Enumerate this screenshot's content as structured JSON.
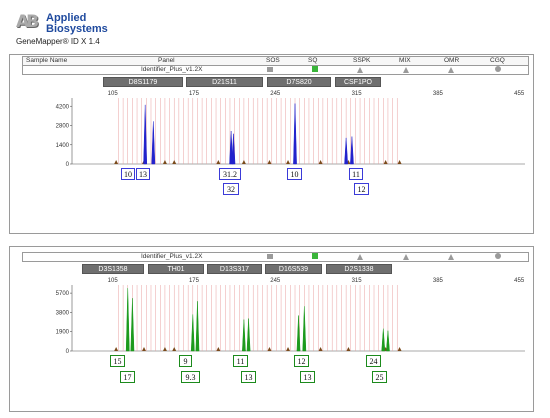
{
  "app": {
    "logo_mark": "AB",
    "brand_line1": "Applied",
    "brand_line2": "Biosystems",
    "product": "GeneMapper® ID X 1.4"
  },
  "columns": [
    "Sample Name",
    "Panel",
    "SOS",
    "SQ",
    "SSPK",
    "MIX",
    "OMR",
    "CGQ"
  ],
  "colors": {
    "blue_dye": "#2222cc",
    "green_dye": "#1c9a1c",
    "ladder_line": "#e8a0a0",
    "sq_pass": "#3ab53a",
    "flag_gray": "#9a9a9a"
  },
  "panels": [
    {
      "panel_name": "Identifier_Plus_v1.2X",
      "loci": [
        "D8S1179",
        "D21S11",
        "D7S820",
        "CSF1PO"
      ],
      "x_ticks": [
        "105",
        "175",
        "245",
        "315",
        "385",
        "455"
      ],
      "y_ticks": [
        "4200",
        "2800",
        "1400",
        "0"
      ],
      "dye": "blue",
      "peaks": [
        {
          "size": 133,
          "height": 4300
        },
        {
          "size": 140,
          "height": 3100
        },
        {
          "size": 207,
          "height": 2400
        },
        {
          "size": 209,
          "height": 2200
        },
        {
          "size": 262,
          "height": 4400
        },
        {
          "size": 306,
          "height": 1900
        },
        {
          "size": 311,
          "height": 2000
        }
      ],
      "alleles_top": [
        "10",
        "13",
        "31.2",
        "10",
        "11"
      ],
      "alleles_bottom": [
        "32",
        "12"
      ]
    },
    {
      "panel_name": "Identifier_Plus_v1.2X",
      "loci": [
        "D3S1358",
        "TH01",
        "D13S317",
        "D16S539",
        "D2S1338"
      ],
      "x_ticks": [
        "105",
        "175",
        "245",
        "315",
        "385",
        "455"
      ],
      "y_ticks": [
        "5700",
        "3800",
        "1900",
        "0"
      ],
      "dye": "green",
      "peaks": [
        {
          "size": 118,
          "height": 6200
        },
        {
          "size": 122,
          "height": 5200
        },
        {
          "size": 174,
          "height": 3600
        },
        {
          "size": 178,
          "height": 4900
        },
        {
          "size": 218,
          "height": 3100
        },
        {
          "size": 222,
          "height": 3200
        },
        {
          "size": 265,
          "height": 3500
        },
        {
          "size": 270,
          "height": 4400
        },
        {
          "size": 338,
          "height": 2200
        },
        {
          "size": 342,
          "height": 2000
        }
      ],
      "alleles_top": [
        "15",
        "9",
        "11",
        "12",
        "24"
      ],
      "alleles_bottom": [
        "17",
        "9.3",
        "13",
        "13",
        "25"
      ]
    }
  ]
}
